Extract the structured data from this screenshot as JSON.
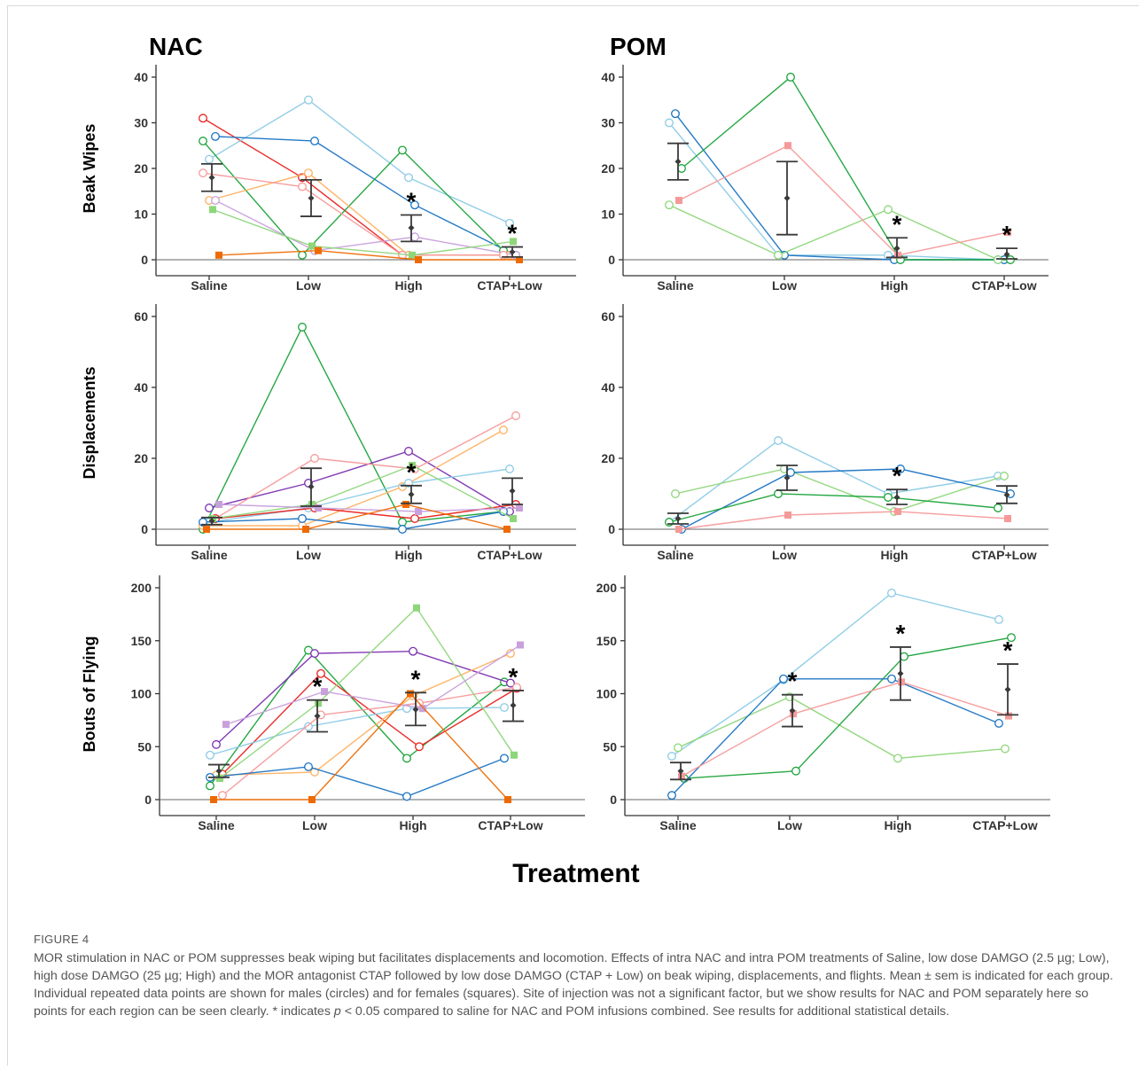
{
  "figure": {
    "label": "FIGURE 4",
    "caption_before_p": "MOR stimulation in NAC or POM suppresses beak wiping but facilitates displacements and locomotion. Effects of intra NAC and intra POM treatments of Saline, low dose DAMGO (2.5 µg; Low), high dose DAMGO (25 µg; High) and the MOR antagonist CTAP followed by low dose DAMGO (CTAP + Low) on beak wiping, displacements, and flights. Mean ± sem is indicated for each group. Individual repeated data points are shown for males (circles) and for females (squares). Site of injection was not a significant factor, but we show results for NAC and POM separately here so points for each region can be seen clearly. * indicates ",
    "caption_p": "p",
    "caption_after_p": " < 0.05 compared to saline for NAC and POM infusions combined. See results for additional statistical details.",
    "x_title": "Treatment",
    "column_titles": [
      "NAC",
      "POM"
    ],
    "row_titles": [
      "Beak Wipes",
      "Displacements",
      "Bouts of Flying"
    ]
  },
  "colors": {
    "axis": "#333333",
    "mean": "#3a3a3a",
    "red": "#e8221f",
    "sky": "#8ccbe6",
    "blue": "#1a73c2",
    "green": "#1aa33a",
    "lightgreen": "#8ed67a",
    "peach": "#ffb060",
    "orange": "#ee6a00",
    "pink": "#f59a9a",
    "lilac": "#c8a0dc",
    "purple": "#7a2fb0",
    "grey": "#bdbdbd"
  },
  "chart_data": [
    {
      "type": "line",
      "region": "NAC",
      "measure": "Beak Wipes",
      "categories": [
        "Saline",
        "Low",
        "High",
        "CTAP+Low"
      ],
      "ylim": [
        0,
        40
      ],
      "yticks": [
        0,
        10,
        20,
        30,
        40
      ],
      "mean": [
        18,
        13.5,
        7,
        1.7
      ],
      "err_low": [
        15,
        9.5,
        4,
        0.6
      ],
      "err_high": [
        21,
        17.5,
        9.8,
        2.8
      ],
      "asterisk": [
        false,
        false,
        true,
        true
      ],
      "series": [
        {
          "color": "red",
          "marker": "circle",
          "values": [
            31,
            18,
            1,
            1
          ]
        },
        {
          "color": "sky",
          "marker": "circle",
          "values": [
            22,
            35,
            18,
            8
          ]
        },
        {
          "color": "blue",
          "marker": "circle",
          "values": [
            27,
            26,
            12,
            1
          ]
        },
        {
          "color": "green",
          "marker": "circle",
          "values": [
            26,
            1,
            24,
            2
          ]
        },
        {
          "color": "peach",
          "marker": "circle",
          "values": [
            13,
            19,
            1,
            1
          ]
        },
        {
          "color": "lilac",
          "marker": "circle",
          "values": [
            13,
            2,
            5,
            1
          ]
        },
        {
          "color": "pink",
          "marker": "circle",
          "values": [
            19,
            16,
            1,
            1
          ]
        },
        {
          "color": "lightgreen",
          "marker": "square",
          "values": [
            11,
            3,
            1,
            4
          ]
        },
        {
          "color": "orange",
          "marker": "square",
          "values": [
            1,
            2,
            0,
            0
          ]
        }
      ]
    },
    {
      "type": "line",
      "region": "POM",
      "measure": "Beak Wipes",
      "categories": [
        "Saline",
        "Low",
        "High",
        "CTAP+Low"
      ],
      "ylim": [
        0,
        40
      ],
      "yticks": [
        0,
        10,
        20,
        30,
        40
      ],
      "mean": [
        21.5,
        13.5,
        2.5,
        1.2
      ],
      "err_low": [
        17.5,
        5.5,
        0.5,
        0.2
      ],
      "err_high": [
        25.5,
        21.5,
        4.8,
        2.5
      ],
      "asterisk": [
        false,
        false,
        true,
        true
      ],
      "series": [
        {
          "color": "sky",
          "marker": "circle",
          "values": [
            30,
            1,
            1,
            0
          ]
        },
        {
          "color": "blue",
          "marker": "circle",
          "values": [
            32,
            1,
            0,
            0
          ]
        },
        {
          "color": "green",
          "marker": "circle",
          "values": [
            20,
            40,
            0,
            0
          ]
        },
        {
          "color": "lightgreen",
          "marker": "circle",
          "values": [
            12,
            1,
            11,
            0
          ]
        },
        {
          "color": "pink",
          "marker": "square",
          "values": [
            13,
            25,
            1,
            6
          ]
        }
      ]
    },
    {
      "type": "line",
      "region": "NAC",
      "measure": "Displacements",
      "categories": [
        "Saline",
        "Low",
        "High",
        "CTAP+Low"
      ],
      "ylim": [
        0,
        60
      ],
      "yticks": [
        0,
        20,
        40,
        60
      ],
      "mean": [
        2.3,
        12,
        9.8,
        10.8
      ],
      "err_low": [
        1.3,
        6.5,
        7.3,
        7
      ],
      "err_high": [
        3.3,
        17.2,
        12.3,
        14.4
      ],
      "asterisk": [
        false,
        false,
        true,
        false
      ],
      "series": [
        {
          "color": "green",
          "marker": "circle",
          "values": [
            0,
            57,
            2,
            5
          ]
        },
        {
          "color": "purple",
          "marker": "circle",
          "values": [
            6,
            13,
            22,
            5
          ]
        },
        {
          "color": "pink",
          "marker": "circle",
          "values": [
            3,
            20,
            17,
            32
          ]
        },
        {
          "color": "peach",
          "marker": "circle",
          "values": [
            1,
            1,
            12,
            28
          ]
        },
        {
          "color": "sky",
          "marker": "circle",
          "values": [
            2,
            6,
            13,
            17
          ]
        },
        {
          "color": "red",
          "marker": "circle",
          "values": [
            3,
            6,
            3,
            7
          ]
        },
        {
          "color": "blue",
          "marker": "circle",
          "values": [
            2,
            3,
            0,
            5
          ]
        },
        {
          "color": "lightgreen",
          "marker": "square",
          "values": [
            3,
            7,
            18,
            3
          ]
        },
        {
          "color": "lilac",
          "marker": "square",
          "values": [
            7,
            6,
            5,
            6
          ]
        },
        {
          "color": "orange",
          "marker": "square",
          "values": [
            0,
            0,
            7,
            0
          ]
        }
      ]
    },
    {
      "type": "line",
      "region": "POM",
      "measure": "Displacements",
      "categories": [
        "Saline",
        "Low",
        "High",
        "CTAP+Low"
      ],
      "ylim": [
        0,
        60
      ],
      "yticks": [
        0,
        20,
        40,
        60
      ],
      "mean": [
        3,
        14.5,
        9,
        9.7
      ],
      "err_low": [
        1.5,
        11,
        7,
        7.3
      ],
      "err_high": [
        4.5,
        18,
        11.2,
        12.2
      ],
      "asterisk": [
        false,
        false,
        true,
        false
      ],
      "series": [
        {
          "color": "sky",
          "marker": "circle",
          "values": [
            2,
            25,
            10,
            15
          ]
        },
        {
          "color": "lightgreen",
          "marker": "circle",
          "values": [
            10,
            17,
            5,
            15
          ]
        },
        {
          "color": "blue",
          "marker": "circle",
          "values": [
            0,
            16,
            17,
            10
          ]
        },
        {
          "color": "green",
          "marker": "circle",
          "values": [
            2,
            10,
            9,
            6
          ]
        },
        {
          "color": "pink",
          "marker": "square",
          "values": [
            0,
            4,
            5,
            3
          ]
        }
      ]
    },
    {
      "type": "line",
      "region": "NAC",
      "measure": "Bouts of Flying",
      "categories": [
        "Saline",
        "Low",
        "High",
        "CTAP+Low"
      ],
      "ylim": [
        0,
        200
      ],
      "yticks": [
        0,
        50,
        100,
        150,
        200
      ],
      "mean": [
        27,
        79,
        85,
        89
      ],
      "err_low": [
        21,
        64,
        70,
        74
      ],
      "err_high": [
        33,
        94,
        101,
        103
      ],
      "asterisk": [
        false,
        true,
        true,
        true
      ],
      "series": [
        {
          "color": "green",
          "marker": "circle",
          "values": [
            13,
            141,
            39,
            111
          ]
        },
        {
          "color": "purple",
          "marker": "circle",
          "values": [
            52,
            138,
            140,
            110
          ]
        },
        {
          "color": "red",
          "marker": "circle",
          "values": [
            24,
            119,
            50,
            105
          ]
        },
        {
          "color": "sky",
          "marker": "circle",
          "values": [
            42,
            69,
            86,
            87
          ]
        },
        {
          "color": "peach",
          "marker": "circle",
          "values": [
            23,
            26,
            98,
            138
          ]
        },
        {
          "color": "pink",
          "marker": "circle",
          "values": [
            4,
            80,
            91,
            106
          ]
        },
        {
          "color": "blue",
          "marker": "circle",
          "values": [
            21,
            31,
            3,
            39
          ]
        },
        {
          "color": "lightgreen",
          "marker": "square",
          "values": [
            20,
            91,
            181,
            42
          ]
        },
        {
          "color": "lilac",
          "marker": "square",
          "values": [
            71,
            102,
            86,
            146
          ]
        },
        {
          "color": "orange",
          "marker": "square",
          "values": [
            0,
            0,
            100,
            0
          ]
        }
      ]
    },
    {
      "type": "line",
      "region": "POM",
      "measure": "Bouts of Flying",
      "categories": [
        "Saline",
        "Low",
        "High",
        "CTAP+Low"
      ],
      "ylim": [
        0,
        200
      ],
      "yticks": [
        0,
        50,
        100,
        150,
        200
      ],
      "mean": [
        27,
        84,
        119,
        104
      ],
      "err_low": [
        19,
        69,
        94,
        80
      ],
      "err_high": [
        35,
        99,
        144,
        128
      ],
      "asterisk": [
        false,
        true,
        true,
        true
      ],
      "series": [
        {
          "color": "sky",
          "marker": "circle",
          "values": [
            41,
            113,
            195,
            170
          ]
        },
        {
          "color": "lightgreen",
          "marker": "circle",
          "values": [
            49,
            97,
            39,
            48
          ]
        },
        {
          "color": "green",
          "marker": "circle",
          "values": [
            20,
            27,
            135,
            153
          ]
        },
        {
          "color": "blue",
          "marker": "circle",
          "values": [
            4,
            114,
            114,
            72
          ]
        },
        {
          "color": "pink",
          "marker": "square",
          "values": [
            22,
            81,
            111,
            79
          ]
        }
      ]
    }
  ]
}
